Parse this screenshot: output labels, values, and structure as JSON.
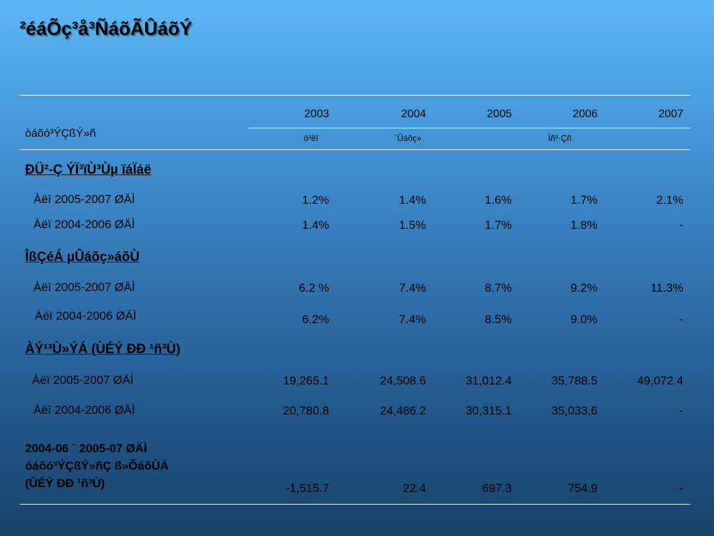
{
  "title": "²éáÕç³å³ÑáõÃÛáõÝ",
  "table": {
    "row_header_label": "òáõó³ÝÇßÝ»ñ",
    "years": [
      "2003",
      "2004",
      "2005",
      "2006",
      "2007"
    ],
    "sub_headers": {
      "c2003": "ö³ëï",
      "c2004": "´Ûáõç»",
      "c2006_07": "Ìñ³·Çñ"
    },
    "sections": [
      {
        "title": "ÐÜ²-Ç ÝÏ³ïÙ³Ùµ ïáÏáë",
        "rows": [
          {
            "label": "Àëï 2005-2007 ØÄÌ",
            "values": [
              "1.2%",
              "1.4%",
              "1.6%",
              "1.7%",
              "2.1%"
            ]
          },
          {
            "label": "Àëï 2004-2006 ØÄÌ",
            "values": [
              "1.4%",
              "1.5%",
              "1.7%",
              "1.8%",
              "-"
            ]
          }
        ]
      },
      {
        "title": "ÎßÇéÁ µÛáõç»áõÙ",
        "rows": [
          {
            "label": "Àëï 2005-2007 ØÄÌ",
            "values": [
              "6.2 %",
              "7.4%",
              "8.7%",
              "9.2%",
              "11.3%"
            ]
          },
          {
            "label": "Àëï 2004-2006 ØÄÌ",
            "values": [
              "6.2%",
              "7.4%",
              "8.5%",
              "9.0%",
              "-"
            ]
          }
        ]
      },
      {
        "title": "ÀÝ¹³Ù»ÝÁ (ÙÉÝ ÐÐ ¹ñ³Ù)",
        "rows": [
          {
            "label": "Àëï 2005-2007 ØÄÌ",
            "values": [
              "19,265.1",
              "24,508.6",
              "31,012.4",
              "35,788.5",
              "49,072.4"
            ]
          },
          {
            "label": "Àëï 2004-2006 ØÄÌ",
            "values": [
              "20,780.8",
              "24,486.2",
              "30,315.1",
              "35,033.6",
              "-"
            ]
          }
        ]
      }
    ],
    "summary": {
      "label_lines": [
        "2004-06 ¨ 2005-07 ØÄÌ",
        "óáõó³ÝÇßÝ»ñÇ ß»ÕáõÙÁ",
        "(ÙÉÝ ÐÐ ¹ñ³Ù)"
      ],
      "values": [
        "-1,515.7",
        "22.4",
        "697.3",
        "754.9",
        "-"
      ]
    }
  }
}
